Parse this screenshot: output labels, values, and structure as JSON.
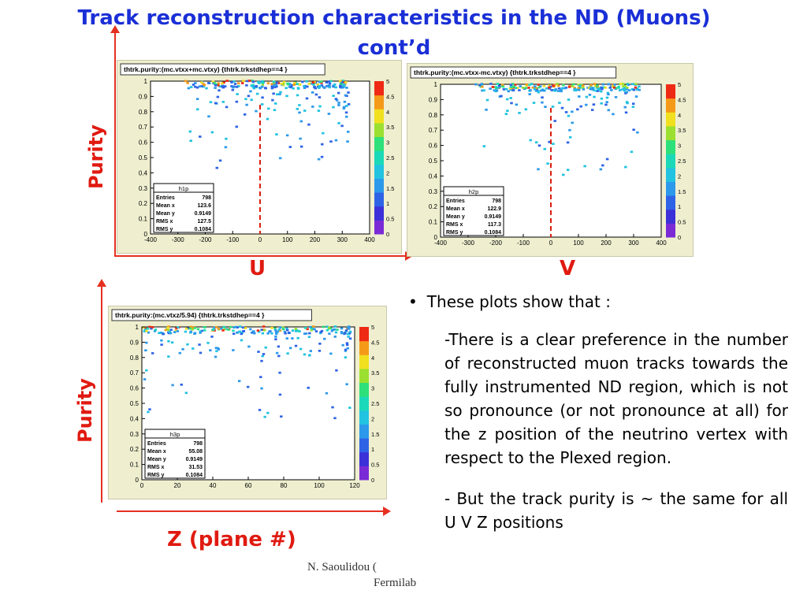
{
  "slide": {
    "title_line1": "Track reconstruction characteristics  in the ND (Muons)",
    "title_line2": "cont’d",
    "y_label_top": "Purity",
    "y_label_bottom": "Purity",
    "x_label_u": "U",
    "x_label_v": "V",
    "x_label_z": "Z (plane #)",
    "bullet_head": "These plots show that :",
    "bullet_p1": "-There is a clear preference in the number of reconstructed muon tracks towards the fully instrumented ND region, which is not so pronounce (or not pronounce at all) for the z position  of the neutrino vertex with respect to the Plexed region.",
    "bullet_p2": "- But the track purity is ~ the same for all U V Z positions",
    "footer_line1": "N. Saoulidou (",
    "footer_line2": "Fermilab"
  },
  "colors": {
    "title": "#1a2fd6",
    "axis_label": "#e01a10",
    "panel_bg": "#efefd0",
    "dashed_line": "#d91e10"
  },
  "chart_data": [
    {
      "type": "heatmap",
      "title": "thtrk.purity:(mc.vtxx+mc.vtxy) {thtrk.trkstdhep==4  }",
      "xlim": [
        -400,
        400
      ],
      "ylim": [
        0,
        1
      ],
      "x_ticks": [
        "-400",
        "-300",
        "-200",
        "-100",
        "0",
        "100",
        "200",
        "300",
        "400"
      ],
      "y_ticks": [
        "0",
        "0.1",
        "0.2",
        "0.3",
        "0.4",
        "0.5",
        "0.6",
        "0.7",
        "0.8",
        "0.9",
        "1"
      ],
      "z_ticks": [
        "0",
        "0.5",
        "1",
        "1.5",
        "2",
        "2.5",
        "3",
        "3.5",
        "4",
        "4.5",
        "5"
      ],
      "marker_x": 0,
      "stats": {
        "name": "h1p",
        "entries": "798",
        "mean_x": "123.6",
        "mean_y": "0.9149",
        "rms_x": "127.5",
        "rms_y": "0.1084"
      }
    },
    {
      "type": "heatmap",
      "title": "thtrk.purity:(mc.vtxx-mc.vtxy) {thtrk.trkstdhep==4  }",
      "xlim": [
        -400,
        400
      ],
      "ylim": [
        0,
        1
      ],
      "x_ticks": [
        "-400",
        "-300",
        "-200",
        "-100",
        "0",
        "100",
        "200",
        "300",
        "400"
      ],
      "y_ticks": [
        "0",
        "0.1",
        "0.2",
        "0.3",
        "0.4",
        "0.5",
        "0.6",
        "0.7",
        "0.8",
        "0.9",
        "1"
      ],
      "z_ticks": [
        "0",
        "0.5",
        "1",
        "1.5",
        "2",
        "2.5",
        "3",
        "3.5",
        "4",
        "4.5",
        "5"
      ],
      "marker_x": 0,
      "stats": {
        "name": "h2p",
        "entries": "798",
        "mean_x": "122.9",
        "mean_y": "0.9149",
        "rms_x": "117.3",
        "rms_y": "0.1084"
      }
    },
    {
      "type": "heatmap",
      "title": "thtrk.purity:(mc.vtxz/5.94) {thtrk.trkstdhep==4  }",
      "xlim": [
        0,
        120
      ],
      "ylim": [
        0,
        1
      ],
      "x_ticks": [
        "0",
        "20",
        "40",
        "60",
        "80",
        "100",
        "120"
      ],
      "y_ticks": [
        "0",
        "0.1",
        "0.2",
        "0.3",
        "0.4",
        "0.5",
        "0.6",
        "0.7",
        "0.8",
        "0.9",
        "1"
      ],
      "z_ticks": [
        "0",
        "0.5",
        "1",
        "1.5",
        "2",
        "2.5",
        "3",
        "3.5",
        "4",
        "4.5",
        "5"
      ],
      "marker_x": null,
      "stats": {
        "name": "h3p",
        "entries": "798",
        "mean_x": "55.08",
        "mean_y": "0.9149",
        "rms_x": "31.53",
        "rms_y": "0.1084"
      }
    }
  ]
}
